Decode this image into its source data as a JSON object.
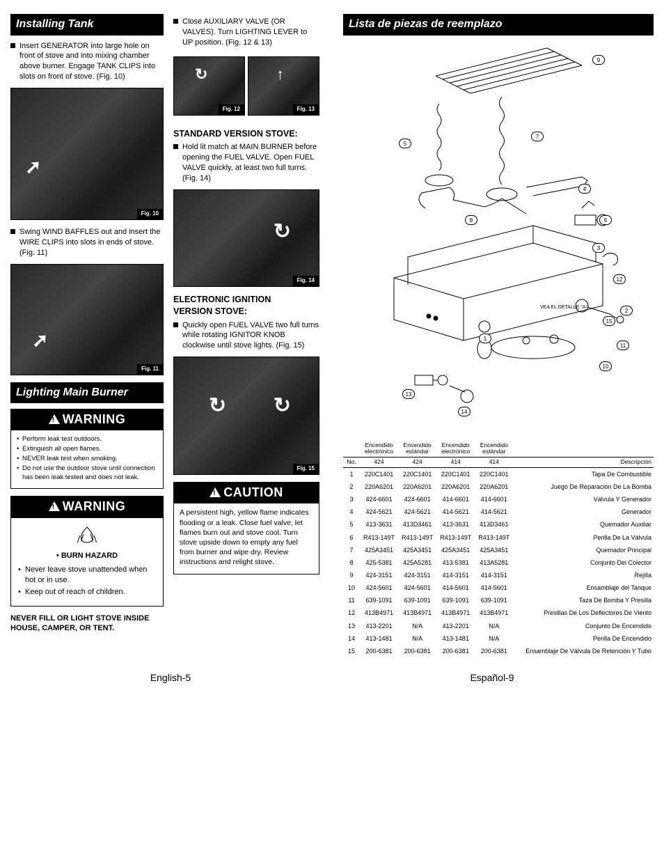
{
  "left": {
    "installing_tank": {
      "header": "Installing Tank",
      "p1": "Insert GENERATOR into large hole on front of stove and into mixing chamber above burner. Engage TANK CLIPS into slots on front of stove. (Fig. 10)",
      "fig10_label": "Fig. 10",
      "p2": "Swing WIND BAFFLES out and insert the WIRE CLIPS into slots in ends of stove. (Fig. 11)",
      "fig11_label": "Fig. 11"
    },
    "lighting": {
      "header": "Lighting Main Burner",
      "warn1_title": "WARNING",
      "warn1_items": [
        "Perform leak test outdoors.",
        "Extinguish all open flames.",
        "NEVER leak test when smoking.",
        "Do not use the outdoor stove until connection has been leak tested and does not leak."
      ],
      "warn2_title": "WARNING",
      "burn_hazard": "• BURN HAZARD",
      "warn2_items": [
        "Never leave stove unattended when hot or in use.",
        "Keep out of reach of children."
      ],
      "never_fill": "NEVER FILL OR LIGHT STOVE INSIDE HOUSE, CAMPER, OR TENT."
    }
  },
  "mid": {
    "close_aux": "Close AUXILIARY VALVE (OR VALVES). Turn LIGHTING LEVER to UP position. (Fig. 12 & 13)",
    "fig12_label": "Fig. 12",
    "fig13_label": "Fig. 13",
    "std_head": "STANDARD VERSION STOVE:",
    "std_p": "Hold lit match at MAIN BURNER before opening the FUEL VALVE. Open FUEL VALVE quickly, at least two full turns. (Fig. 14)",
    "fig14_label": "Fig. 14",
    "elec_head1": "ELECTRONIC IGNITION",
    "elec_head2": "VERSION STOVE:",
    "elec_p": "Quickly open FUEL VALVE two full turns while rotating IGNITOR KNOB clockwise until stove lights. (Fig. 15)",
    "fig15_label": "Fig. 15",
    "caution_title": "CAUTION",
    "caution_body": "A persistent high, yellow flame indicates flooding or a leak. Close fuel valve, let flames burn out and stove cool. Turn stove upside down to empty any fuel from burner and wipe dry. Review instructions and relight stove."
  },
  "right": {
    "header": "Lista de piezas de reemplazo",
    "detail_label": "VEA EL DETALLE \"A\"",
    "table": {
      "col_headers": {
        "no": "No.",
        "c1a": "Encendido",
        "c1b": "electrónico",
        "c2a": "Encendido",
        "c2b": "estándar",
        "c3a": "Encendido",
        "c3b": "electrónico",
        "c4a": "Encendido",
        "c4b": "estándar",
        "desc": "Descripción"
      },
      "model_row": [
        "",
        "424",
        "424",
        "414",
        "414",
        ""
      ],
      "rows": [
        [
          "1",
          "220C1401",
          "220C1401",
          "220C1401",
          "220C1401",
          "Tapa De Combustible"
        ],
        [
          "2",
          "220A6201",
          "220A6201",
          "220A6201",
          "220A6201",
          "Juego De Reparación De La Bomba"
        ],
        [
          "3",
          "424-6601",
          "424-6601",
          "414-6601",
          "414-6601",
          "Válvula Y Generador"
        ],
        [
          "4",
          "424-5621",
          "424-5621",
          "414-5621",
          "414-5621",
          "Generador"
        ],
        [
          "5",
          "413-3631",
          "413D3461",
          "413-3631",
          "413D3461",
          "Quemador Auxiliar"
        ],
        [
          "6",
          "R413-149T",
          "R413-149T",
          "R413-149T",
          "R413-149T",
          "Perilla De La Válvula"
        ],
        [
          "7",
          "425A3451",
          "425A3451",
          "425A3451",
          "425A3451",
          "Quemador Principal"
        ],
        [
          "8",
          "425-5381",
          "425A5281",
          "413-5381",
          "413A5281",
          "Conjunto Del Colector"
        ],
        [
          "9",
          "424-3151",
          "424-3151",
          "414-3151",
          "414-3151",
          "Rejilla"
        ],
        [
          "10",
          "424-5601",
          "424-5601",
          "414-5601",
          "414-5601",
          "Ensamblaje del Tanque"
        ],
        [
          "11",
          "639-1091",
          "639-1091",
          "639-1091",
          "639-1091",
          "Taza De Bomba Y Presilla"
        ],
        [
          "12",
          "413B4971",
          "413B4971",
          "413B4971",
          "413B4971",
          "Presillas De Los Deflectores De Viento"
        ],
        [
          "13",
          "413-2201",
          "N/A",
          "413-2201",
          "N/A",
          "Conjunto De Encendido"
        ],
        [
          "14",
          "413-1481",
          "N/A",
          "413-1481",
          "N/A",
          "Perilla De Encendido"
        ],
        [
          "15",
          "200-6381",
          "200-6381",
          "200-6381",
          "200-6381",
          "Ensamblaje De Válvula De Retención Y Tubo"
        ]
      ]
    }
  },
  "footer": {
    "left": "English-5",
    "right": "Español-9"
  },
  "colors": {
    "black": "#000000",
    "white": "#ffffff",
    "photo_bg": "#3a3a3a"
  }
}
